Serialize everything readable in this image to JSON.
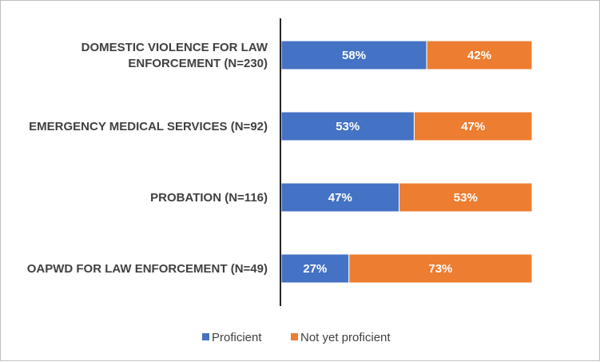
{
  "chart_data": {
    "type": "bar",
    "orientation": "horizontal",
    "stacked": true,
    "normalized": true,
    "categories": [
      "DOMESTIC VIOLENCE FOR LAW ENFORCEMENT (N=230)",
      "EMERGENCY MEDICAL SERVICES (N=92)",
      "PROBATION (N=116)",
      "OAPWD FOR LAW ENFORCEMENT (N=49)"
    ],
    "category_lines": [
      [
        "DOMESTIC VIOLENCE FOR LAW",
        "ENFORCEMENT (N=230)"
      ],
      [
        "EMERGENCY MEDICAL SERVICES (N=92)"
      ],
      [
        "PROBATION (N=116)"
      ],
      [
        "OAPWD FOR LAW ENFORCEMENT (N=49)"
      ]
    ],
    "series": [
      {
        "name": "Proficient",
        "values": [
          58,
          53,
          47,
          27
        ],
        "labels": [
          "58%",
          "53%",
          "47%",
          "27%"
        ],
        "color": "#4472C4"
      },
      {
        "name": "Not yet proficient",
        "values": [
          42,
          47,
          53,
          73
        ],
        "labels": [
          "42%",
          "47%",
          "53%",
          "73%"
        ],
        "color": "#ED7D31"
      }
    ],
    "xlim": [
      0,
      100
    ],
    "grid": false,
    "legend_position": "bottom"
  }
}
